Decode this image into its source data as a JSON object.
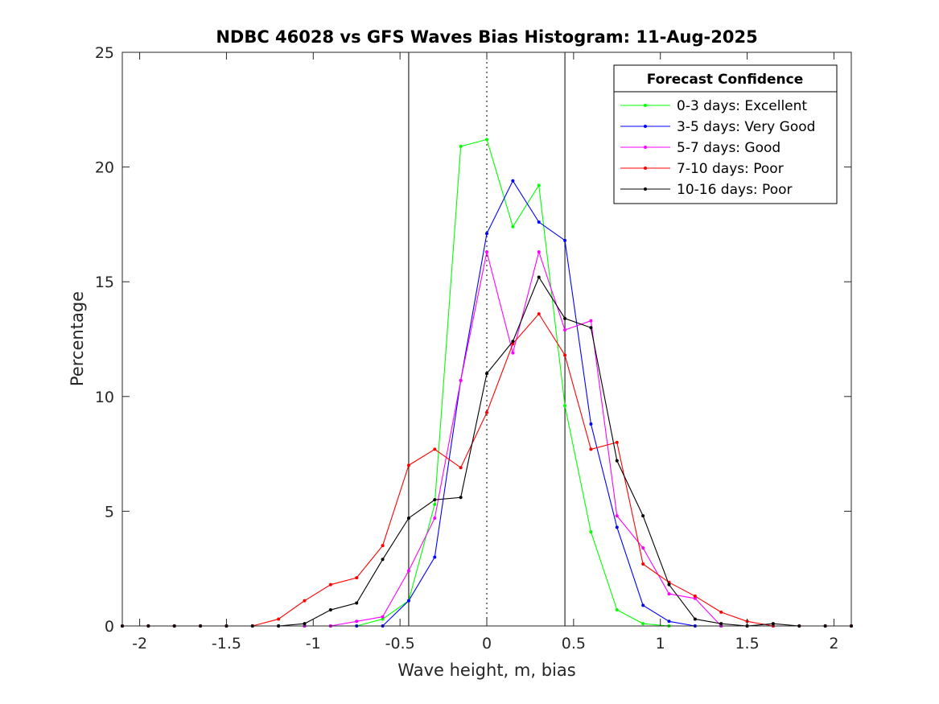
{
  "chart_data": {
    "type": "line",
    "title": "NDBC 46028 vs GFS Waves Bias Histogram: 11-Aug-2025",
    "xlabel": "Wave height, m, bias",
    "ylabel": "Percentage",
    "xlim": [
      -2.1,
      2.1
    ],
    "ylim": [
      0,
      25
    ],
    "xticks": [
      -2,
      -1.5,
      -1,
      -0.5,
      0,
      0.5,
      1,
      1.5,
      2
    ],
    "xtick_labels": [
      "-2",
      "-1.5",
      "-1",
      "-0.5",
      "0",
      "0.5",
      "1",
      "1.5",
      "2"
    ],
    "yticks": [
      0,
      5,
      10,
      15,
      20,
      25
    ],
    "ytick_labels": [
      "0",
      "5",
      "10",
      "15",
      "20",
      "25"
    ],
    "vertical_lines": [
      {
        "x": -0.45,
        "style": "solid"
      },
      {
        "x": 0,
        "style": "dotted"
      },
      {
        "x": 0.45,
        "style": "solid"
      }
    ],
    "legend": {
      "title": "Forecast Confidence",
      "position": "top-right"
    },
    "x": [
      -2.1,
      -1.95,
      -1.8,
      -1.65,
      -1.5,
      -1.35,
      -1.2,
      -1.05,
      -0.9,
      -0.75,
      -0.6,
      -0.45,
      -0.3,
      -0.15,
      0,
      0.15,
      0.3,
      0.45,
      0.6,
      0.75,
      0.9,
      1.05,
      1.2,
      1.35,
      1.5,
      1.65,
      1.8,
      1.95,
      2.1
    ],
    "series": [
      {
        "name": "0-3 days: Excellent",
        "color": "#00ff00",
        "values": [
          0,
          0,
          0,
          0,
          0,
          0,
          0,
          0,
          0,
          0,
          0.3,
          1.1,
          5.3,
          20.9,
          21.2,
          17.4,
          19.2,
          9.6,
          4.1,
          0.7,
          0.1,
          0,
          0,
          0,
          0,
          0,
          0,
          0,
          0
        ]
      },
      {
        "name": "3-5 days: Very Good",
        "color": "#0000ff",
        "values": [
          0,
          0,
          0,
          0,
          0,
          0,
          0,
          0,
          0,
          0,
          0,
          1.1,
          3.0,
          10.7,
          17.1,
          19.4,
          17.6,
          16.8,
          8.8,
          4.3,
          0.9,
          0.2,
          0,
          0,
          0,
          0,
          0,
          0,
          0
        ]
      },
      {
        "name": "5-7 days: Good",
        "color": "#ff00ff",
        "values": [
          0,
          0,
          0,
          0,
          0,
          0,
          0,
          0,
          0,
          0.2,
          0.4,
          2.4,
          4.7,
          10.7,
          16.3,
          11.9,
          16.3,
          12.9,
          13.3,
          4.8,
          3.4,
          1.4,
          1.2,
          0,
          0,
          0,
          0,
          0,
          0
        ]
      },
      {
        "name": "7-10 days: Poor",
        "color": "#ff0000",
        "values": [
          0,
          0,
          0,
          0,
          0,
          0,
          0.3,
          1.1,
          1.8,
          2.1,
          3.5,
          7.0,
          7.7,
          6.9,
          9.3,
          12.3,
          13.6,
          11.8,
          7.7,
          8.0,
          2.7,
          1.9,
          1.3,
          0.6,
          0.2,
          0,
          0,
          0,
          0
        ]
      },
      {
        "name": "10-16 days: Poor",
        "color": "#000000",
        "values": [
          0,
          0,
          0,
          0,
          0,
          0,
          0,
          0.1,
          0.7,
          1.0,
          2.9,
          4.7,
          5.5,
          5.6,
          11.0,
          12.4,
          15.2,
          13.4,
          13.0,
          7.2,
          4.8,
          1.8,
          0.3,
          0.1,
          0,
          0.1,
          0,
          0,
          0
        ]
      }
    ]
  }
}
